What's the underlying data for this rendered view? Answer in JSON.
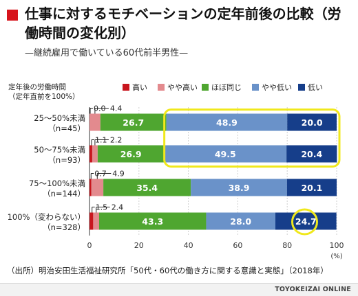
{
  "header": {
    "title": "仕事に対するモチベーションの定年前後の比較（労働時間の変化別）",
    "subtitle": "—継続雇用で働いている60代前半男性—"
  },
  "footer": {
    "source": "（出所）明治安田生活福祉研究所「50代・60代の働き方に関する意識と実態」（2018年）",
    "brand": "TOYOKEIZAI ONLINE"
  },
  "colors": {
    "accent": "#d7141c",
    "highlight": "#f0e81c"
  },
  "chart_data": {
    "type": "bar",
    "orientation": "horizontal",
    "stacked": true,
    "row_header": [
      "定年後の労働時間",
      "（定年直前を100%）"
    ],
    "categories": [
      {
        "label": "25〜50%未満",
        "n": "（n=45）"
      },
      {
        "label": "50〜75%未満",
        "n": "（n=93）"
      },
      {
        "label": "75〜100%未満",
        "n": "（n=144）"
      },
      {
        "label": "100%（変わらない）",
        "n": "（n=328）"
      }
    ],
    "series": [
      {
        "name": "高い",
        "color": "#c8161e",
        "values": [
          0.0,
          1.1,
          0.7,
          1.5
        ]
      },
      {
        "name": "やや高い",
        "color": "#e38a8e",
        "values": [
          4.4,
          2.2,
          4.9,
          2.4
        ]
      },
      {
        "name": "ほぼ同じ",
        "color": "#4fa630",
        "values": [
          26.7,
          26.9,
          35.4,
          43.3
        ]
      },
      {
        "name": "やや低い",
        "color": "#6a92c9",
        "values": [
          48.9,
          49.5,
          38.9,
          28.0
        ]
      },
      {
        "name": "低い",
        "color": "#163e8a",
        "values": [
          20.0,
          20.4,
          20.1,
          24.7
        ]
      }
    ],
    "x_ticks": [
      "0",
      "20",
      "40",
      "60",
      "80",
      "100"
    ],
    "x_unit": "(%)",
    "xlim": [
      0,
      100
    ],
    "legend_position": "top",
    "highlights": [
      "rows 1-2, やや低い and 低い segments boxed",
      "row 4, 低い value circled"
    ]
  }
}
